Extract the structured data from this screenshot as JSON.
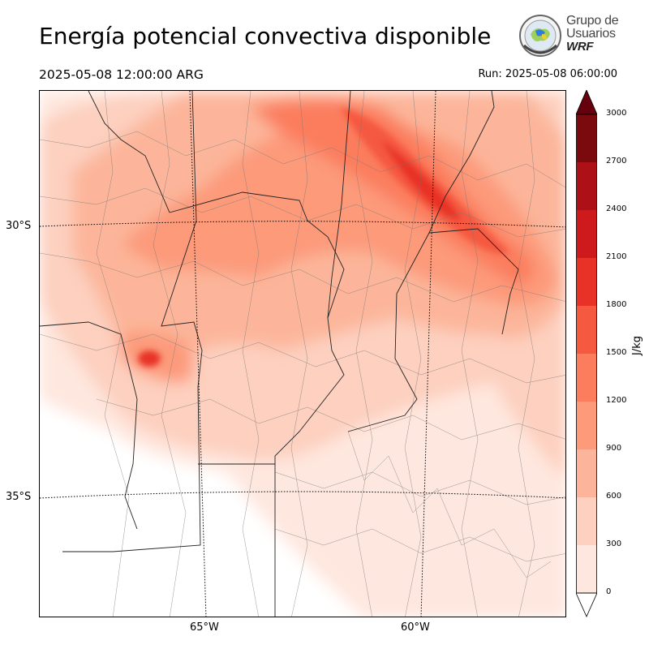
{
  "title": "Energía potencial convectiva disponible",
  "valid_time": "2025-05-08 12:00:00 ARG",
  "run_time": "Run: 2025-05-08 06:00:00",
  "logo": {
    "line1": "Grupo de",
    "line2": "Usuarios",
    "line3": "WRF"
  },
  "map": {
    "lat_labels": [
      "30°S",
      "35°S"
    ],
    "lon_labels": [
      "65°W",
      "60°W"
    ]
  },
  "colorbar": {
    "units": "J/kg",
    "ticks": [
      "0",
      "300",
      "600",
      "900",
      "1200",
      "1500",
      "1800",
      "2100",
      "2400",
      "2700",
      "3000"
    ],
    "colors": [
      "#fee7de",
      "#fdd0bf",
      "#fcb59a",
      "#fc9a7a",
      "#fb7d5d",
      "#f5593f",
      "#e83228",
      "#ce1a1c",
      "#ad1117",
      "#7a0a0d"
    ],
    "under_color": "#ffffff",
    "over_color": "#67000d"
  }
}
